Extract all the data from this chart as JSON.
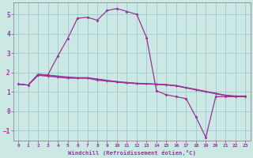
{
  "title": "",
  "xlabel": "Windchill (Refroidissement éolien,°C)",
  "ylabel": "",
  "background_color": "#cce8e4",
  "grid_color": "#99cccc",
  "line_color": "#993399",
  "xlim": [
    -0.5,
    23.5
  ],
  "ylim": [
    -1.5,
    5.6
  ],
  "yticks": [
    -1,
    0,
    1,
    2,
    3,
    4,
    5
  ],
  "xticks": [
    0,
    1,
    2,
    3,
    4,
    5,
    6,
    7,
    8,
    9,
    10,
    11,
    12,
    13,
    14,
    15,
    16,
    17,
    18,
    19,
    20,
    21,
    22,
    23
  ],
  "band_series": [
    [
      1.4,
      1.35,
      1.85,
      1.8,
      1.75,
      1.7,
      1.7,
      1.7,
      1.6,
      1.55,
      1.5,
      1.45,
      1.42,
      1.4,
      1.38,
      1.35,
      1.3,
      1.2,
      1.1,
      1.0,
      0.9,
      0.8,
      0.75,
      0.75
    ],
    [
      1.4,
      1.35,
      1.9,
      1.85,
      1.8,
      1.75,
      1.72,
      1.72,
      1.65,
      1.58,
      1.52,
      1.48,
      1.44,
      1.42,
      1.4,
      1.37,
      1.32,
      1.22,
      1.12,
      1.02,
      0.92,
      0.82,
      0.78,
      0.78
    ],
    [
      1.4,
      1.35,
      1.88,
      1.83,
      1.78,
      1.73,
      1.71,
      1.71,
      1.63,
      1.57,
      1.51,
      1.47,
      1.43,
      1.41,
      1.39,
      1.36,
      1.31,
      1.21,
      1.11,
      1.01,
      0.91,
      0.81,
      0.77,
      0.77
    ],
    [
      1.4,
      1.35,
      1.92,
      1.87,
      1.82,
      1.77,
      1.74,
      1.74,
      1.67,
      1.6,
      1.54,
      1.49,
      1.45,
      1.43,
      1.41,
      1.38,
      1.33,
      1.23,
      1.13,
      1.03,
      0.93,
      0.83,
      0.79,
      0.79
    ]
  ],
  "main_series": [
    1.4,
    1.35,
    1.85,
    1.88,
    2.85,
    3.75,
    4.8,
    4.85,
    4.7,
    5.2,
    5.3,
    5.15,
    5.0,
    3.8,
    1.05,
    0.85,
    0.75,
    0.65,
    -0.3,
    -1.35,
    0.75,
    0.75,
    0.75,
    0.75
  ]
}
